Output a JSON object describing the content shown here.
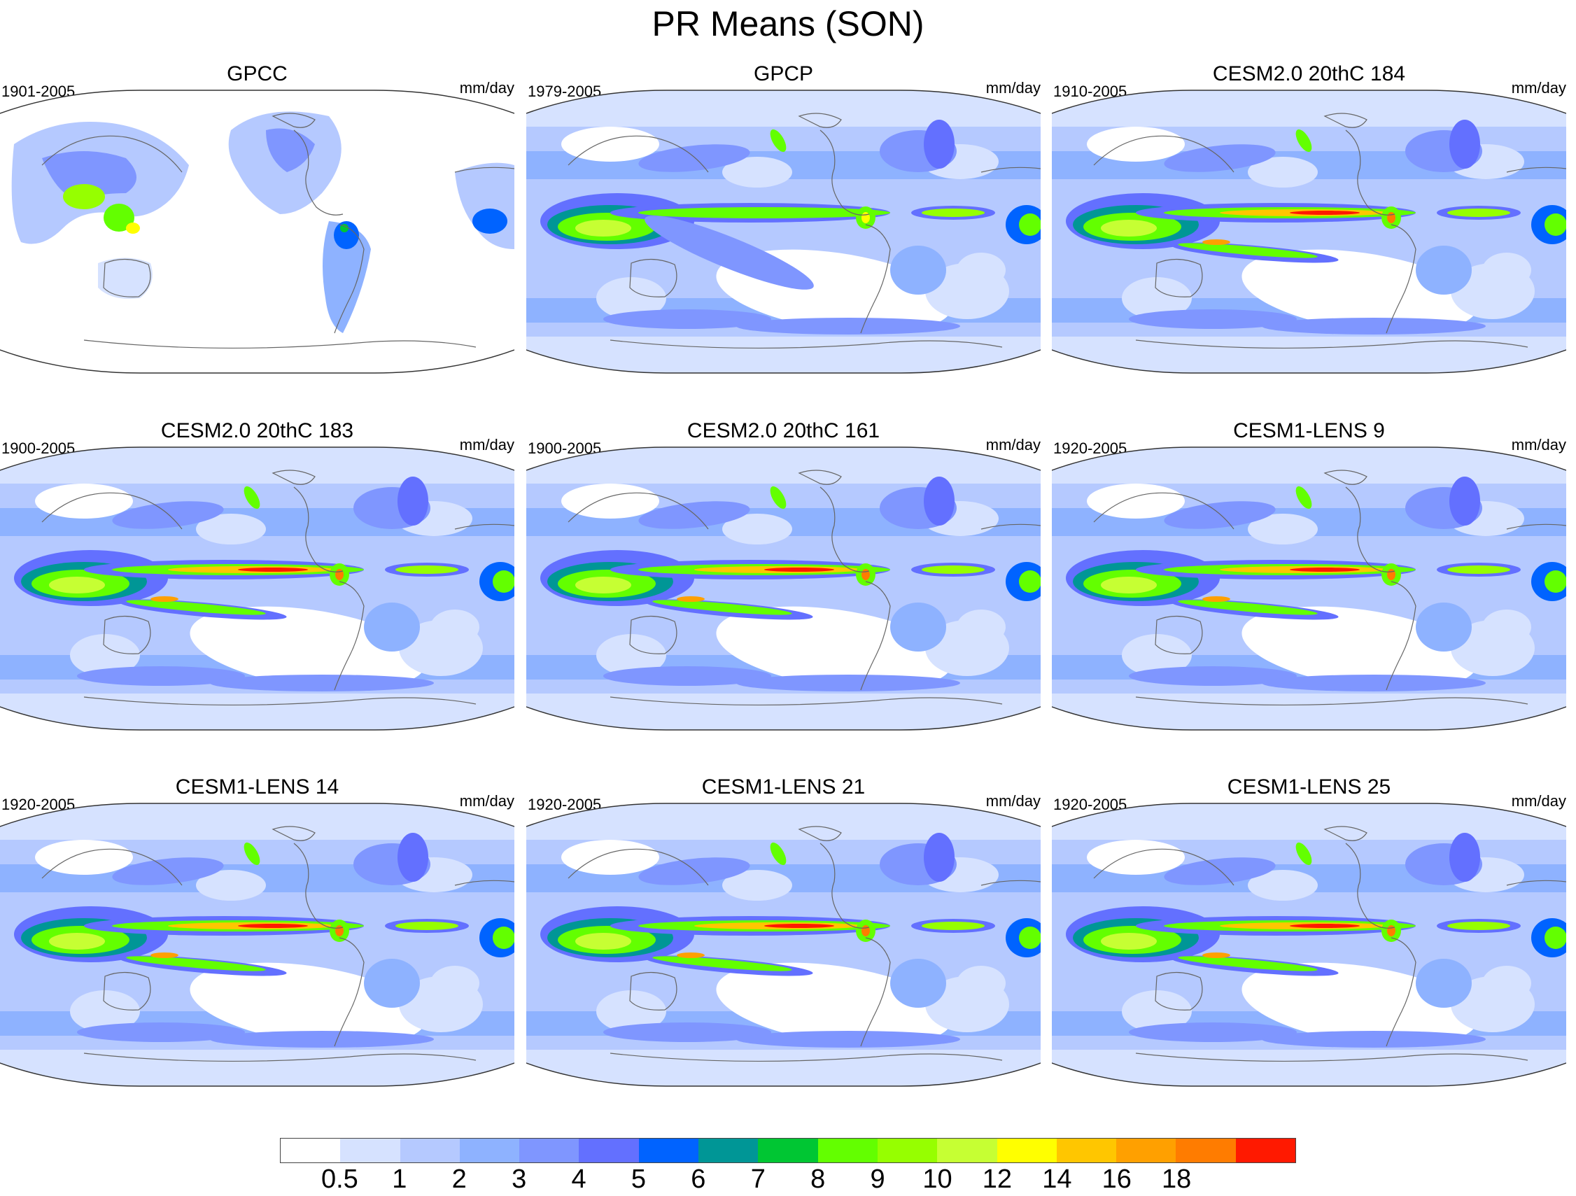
{
  "title": "PR Means (SON)",
  "panels": [
    {
      "title": "GPCC",
      "years": "1901-2005",
      "units": "mm/day",
      "type": "land"
    },
    {
      "title": "GPCP",
      "years": "1979-2005",
      "units": "mm/day",
      "type": "obs"
    },
    {
      "title": "CESM2.0 20thC 184",
      "years": "1910-2005",
      "units": "mm/day",
      "type": "model"
    },
    {
      "title": "CESM2.0 20thC 183",
      "years": "1900-2005",
      "units": "mm/day",
      "type": "model"
    },
    {
      "title": "CESM2.0 20thC 161",
      "years": "1900-2005",
      "units": "mm/day",
      "type": "model"
    },
    {
      "title": "CESM1-LENS 9",
      "years": "1920-2005",
      "units": "mm/day",
      "type": "model"
    },
    {
      "title": "CESM1-LENS 14",
      "years": "1920-2005",
      "units": "mm/day",
      "type": "model"
    },
    {
      "title": "CESM1-LENS 21",
      "years": "1920-2005",
      "units": "mm/day",
      "type": "model"
    },
    {
      "title": "CESM1-LENS 25",
      "years": "1920-2005",
      "units": "mm/day",
      "type": "model"
    }
  ],
  "colorbar": {
    "colors": [
      "#ffffff",
      "#d6e2ff",
      "#b5c9ff",
      "#8eb2ff",
      "#7f96ff",
      "#6370ff",
      "#0063ff",
      "#009696",
      "#00c633",
      "#63ff00",
      "#96ff00",
      "#c6ff33",
      "#ffff00",
      "#ffc600",
      "#ffa000",
      "#ff7c00",
      "#ff1900"
    ],
    "labels": [
      "0.5",
      "1",
      "2",
      "3",
      "4",
      "5",
      "6",
      "7",
      "8",
      "9",
      "10",
      "12",
      "14",
      "16",
      "18"
    ]
  },
  "legend_colors": {
    "dry": "#ffffff",
    "light": "#d6e2ff",
    "moderate": "#8eb2ff",
    "wet": "#6370ff",
    "heavy": "#63ff00",
    "very_heavy": "#ffff00",
    "extreme": "#ff1900"
  }
}
